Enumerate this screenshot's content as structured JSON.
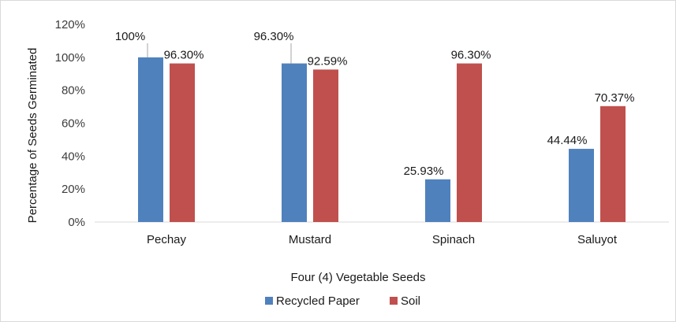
{
  "chart_data": {
    "type": "bar",
    "categories": [
      "Pechay",
      "Mustard",
      "Spinach",
      "Saluyot"
    ],
    "series": [
      {
        "name": "Recycled Paper",
        "values": [
          100,
          96.3,
          25.93,
          44.44
        ],
        "labels": [
          "100%",
          "96.30%",
          "25.93%",
          "44.44%"
        ],
        "color": "#4f81bd"
      },
      {
        "name": "Soil",
        "values": [
          96.3,
          92.59,
          96.3,
          70.37
        ],
        "labels": [
          "96.30%",
          "92.59%",
          "96.30%",
          "70.37%"
        ],
        "color": "#c0504d"
      }
    ],
    "title": "",
    "xlabel": "Four (4) Vegetable Seeds",
    "ylabel": "Percentage of Seeds Germinated",
    "ylim": [
      0,
      120
    ],
    "yticks": [
      0,
      20,
      40,
      60,
      80,
      100,
      120
    ],
    "ytick_labels": [
      "0%",
      "20%",
      "40%",
      "60%",
      "80%",
      "100%",
      "120%"
    ],
    "grid": false,
    "legend_position": "bottom"
  }
}
